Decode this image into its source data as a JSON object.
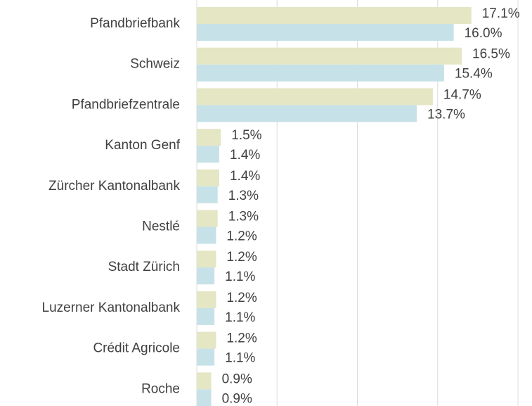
{
  "chart_data": {
    "type": "bar",
    "orientation": "horizontal",
    "categories": [
      "Pfandbriefbank",
      "Schweiz",
      "Pfandbriefzentrale",
      "Kanton Genf",
      "Zürcher Kantonalbank",
      "Nestlé",
      "Stadt Zürich",
      "Luzerner Kantonalbank",
      "Crédit Agricole",
      "Roche"
    ],
    "series": [
      {
        "color": "#e4e6c4",
        "values": [
          17.1,
          16.5,
          14.7,
          1.5,
          1.4,
          1.3,
          1.2,
          1.2,
          1.2,
          0.9
        ],
        "value_labels": [
          "17.1%",
          "16.5%",
          "14.7%",
          "1.5%",
          "1.4%",
          "1.3%",
          "1.2%",
          "1.2%",
          "1.2%",
          "0.9%"
        ]
      },
      {
        "color": "#c6e2e8",
        "values": [
          16.0,
          15.4,
          13.7,
          1.4,
          1.3,
          1.2,
          1.1,
          1.1,
          1.1,
          0.9
        ],
        "value_labels": [
          "16.0%",
          "15.4%",
          "13.7%",
          "1.4%",
          "1.3%",
          "1.2%",
          "1.1%",
          "1.1%",
          "1.1%",
          "0.9%"
        ]
      }
    ],
    "xlim": [
      0,
      20
    ],
    "xticks": [
      0,
      5,
      10,
      15,
      20
    ],
    "grid": true
  }
}
